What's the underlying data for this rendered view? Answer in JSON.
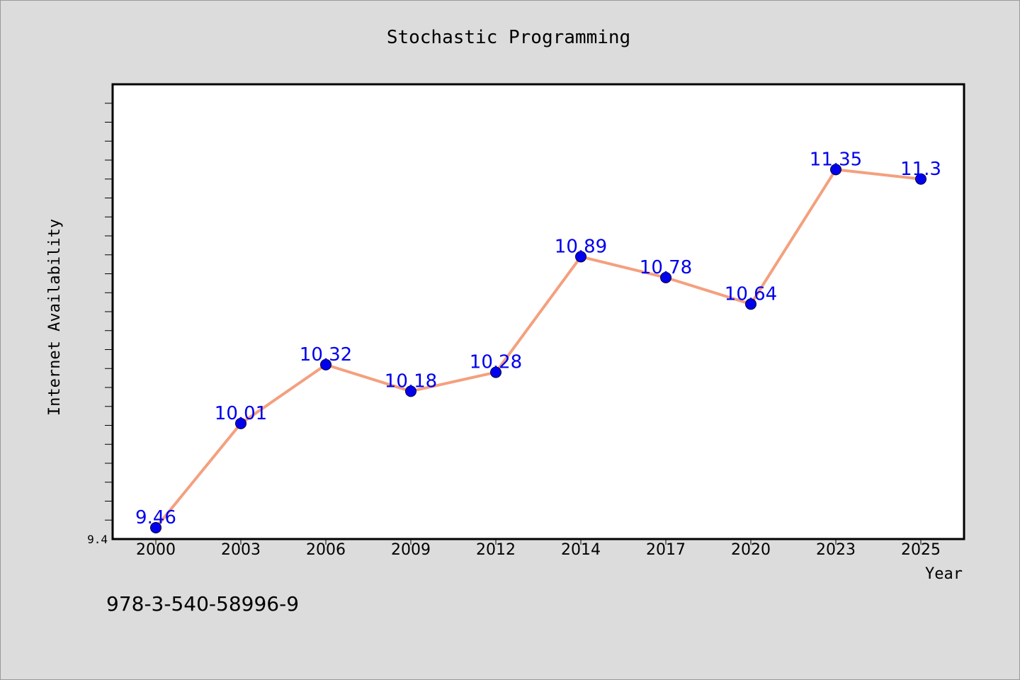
{
  "chart_data": {
    "type": "line",
    "title": "Stochastic Programming",
    "xlabel": "Year",
    "ylabel": "Internet Availability",
    "categories": [
      "2000",
      "2003",
      "2006",
      "2009",
      "2012",
      "2014",
      "2017",
      "2020",
      "2023",
      "2025"
    ],
    "series": [
      {
        "values": [
          9.46,
          10.01,
          10.32,
          10.18,
          10.28,
          10.89,
          10.78,
          10.64,
          11.35,
          11.3
        ],
        "labels": [
          "9.46",
          "10.01",
          "10.32",
          "10.18",
          "10.28",
          "10.89",
          "10.78",
          "10.64",
          "11.35",
          "11.3"
        ],
        "line_color": "#f4a07e",
        "marker_color": "#0000ee",
        "label_color": "#0000ee"
      }
    ],
    "ylim": [
      9.4,
      11.8
    ],
    "yticks_labeled": [
      "9.4"
    ],
    "grid": false,
    "legend": "none"
  },
  "footnote": "978-3-540-58996-9",
  "colors": {
    "background": "#dcdcdc",
    "plot_background": "#ffffff"
  }
}
